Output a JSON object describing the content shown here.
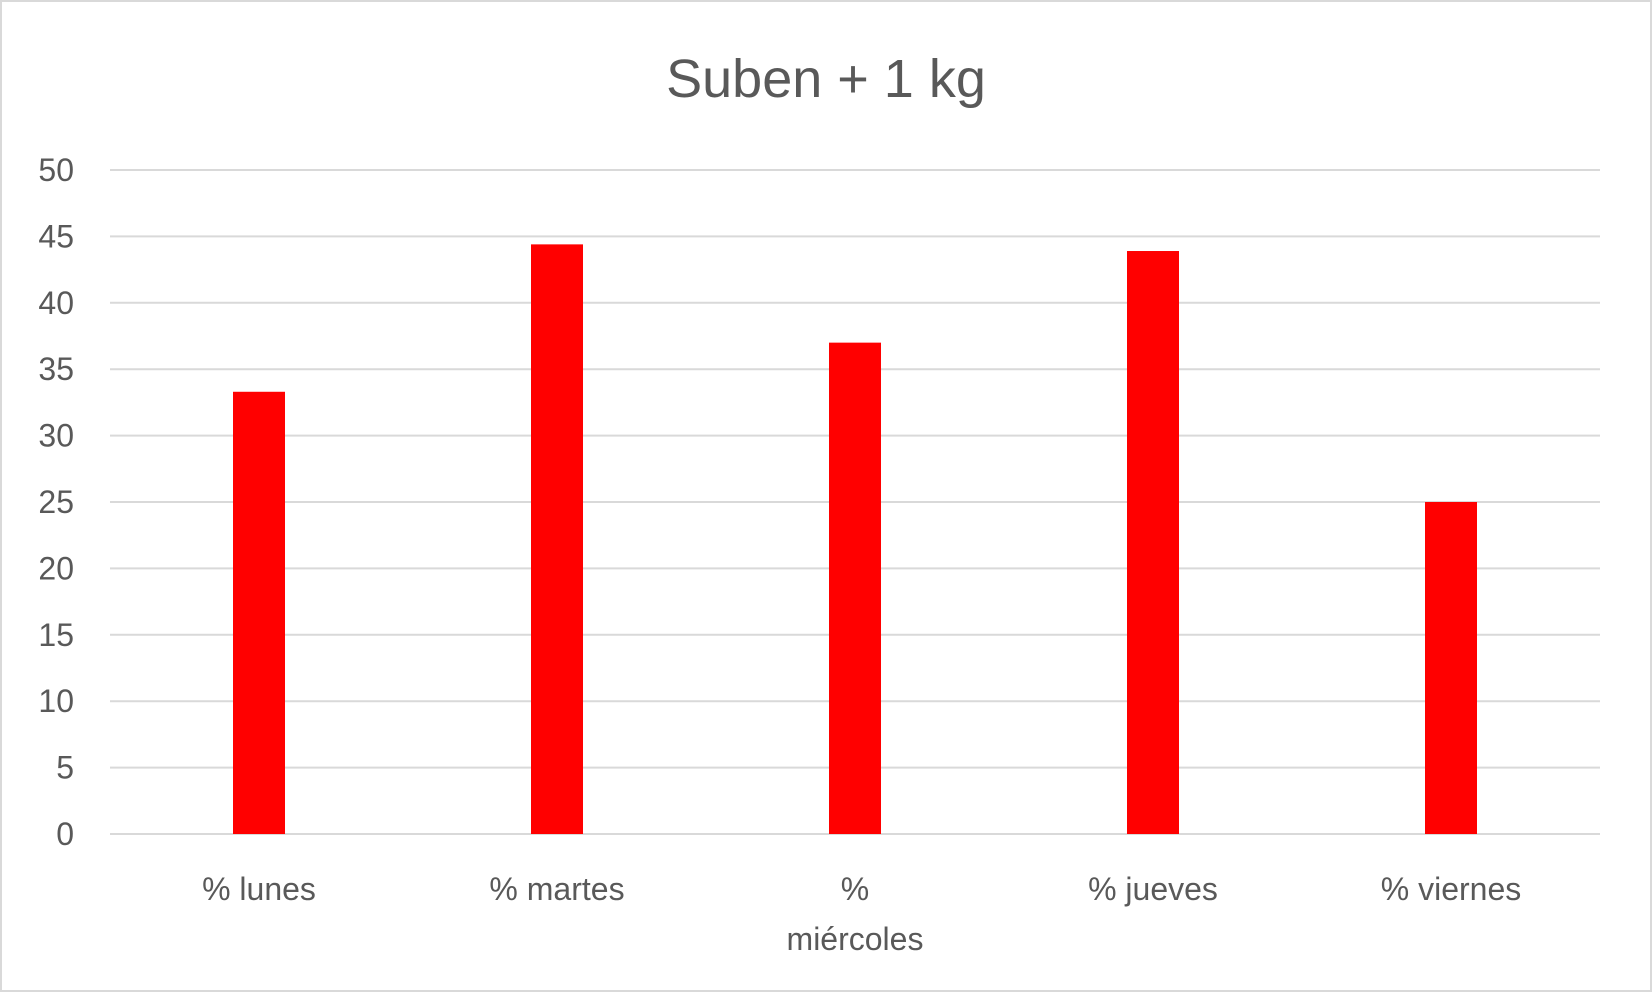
{
  "chart_data": {
    "type": "bar",
    "title": "Suben + 1 kg",
    "xlabel": "",
    "ylabel": "",
    "categories": [
      [
        "% lunes"
      ],
      [
        "% martes"
      ],
      [
        "%",
        "miércoles"
      ],
      [
        "% jueves"
      ],
      [
        "% viernes"
      ]
    ],
    "values": [
      33.3,
      44.4,
      37.0,
      43.9,
      25.0
    ],
    "ylim": [
      0,
      50
    ],
    "yticks": [
      "0",
      "5",
      "10",
      "15",
      "20",
      "25",
      "30",
      "35",
      "40",
      "45",
      "50"
    ],
    "grid": true,
    "legend": "none",
    "bar_color": "#ff0000",
    "grid_color": "#d9d9d9",
    "text_color": "#595959"
  }
}
